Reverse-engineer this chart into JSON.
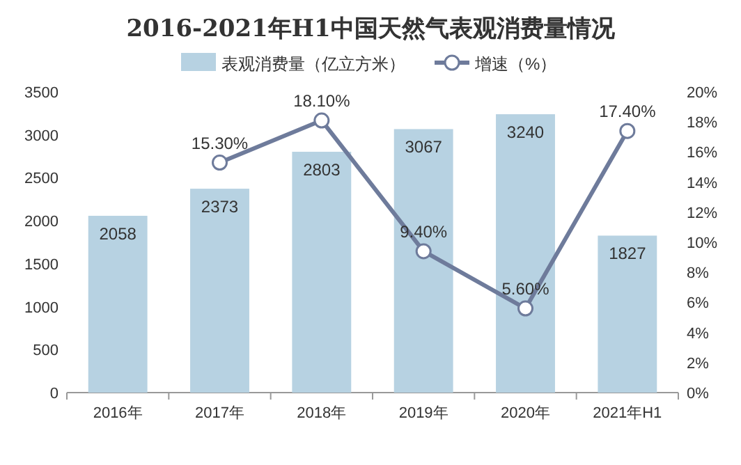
{
  "chart_data": {
    "type": "bar",
    "title": "2016-2021年H1中国天然气表观消费量情况",
    "categories": [
      "2016年",
      "2017年",
      "2018年",
      "2019年",
      "2020年",
      "2021年H1"
    ],
    "series": [
      {
        "name": "表观消费量（亿立方米）",
        "color": "#b7d2e2",
        "values": [
          2058,
          2373,
          2803,
          3067,
          3240,
          1827
        ],
        "value_labels": [
          "2058",
          "2373",
          "2803",
          "3067",
          "3240",
          "1827"
        ]
      },
      {
        "name": "增速（%）",
        "type": "line",
        "axis": "y2",
        "color": "#6e7b9b",
        "values": [
          null,
          15.3,
          18.1,
          9.4,
          5.6,
          17.4
        ],
        "value_labels": [
          null,
          "15.30%",
          "18.10%",
          "9.40%",
          "5.60%",
          "17.40%"
        ]
      }
    ],
    "ylim": [
      0,
      3500
    ],
    "yticks": [
      0,
      500,
      1000,
      1500,
      2000,
      2500,
      3000,
      3500
    ],
    "y2lim": [
      0,
      20
    ],
    "y2ticks": [
      {
        "value": 0,
        "label": "0%"
      },
      {
        "value": 2,
        "label": "2%"
      },
      {
        "value": 4,
        "label": "4%"
      },
      {
        "value": 6,
        "label": "6%"
      },
      {
        "value": 8,
        "label": "8%"
      },
      {
        "value": 10,
        "label": "10%"
      },
      {
        "value": 12,
        "label": "12%"
      },
      {
        "value": 14,
        "label": "14%"
      },
      {
        "value": 16,
        "label": "16%"
      },
      {
        "value": 18,
        "label": "18%"
      },
      {
        "value": 20,
        "label": "20%"
      }
    ],
    "legend": "top",
    "marker": "circle",
    "line_style": "solid",
    "grid": false
  }
}
